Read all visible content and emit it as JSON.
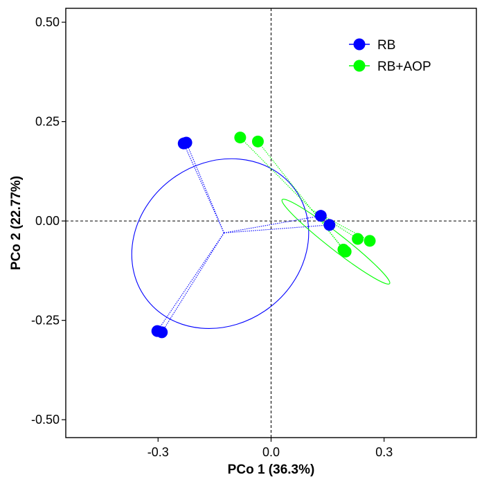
{
  "chart_data": {
    "type": "scatter",
    "xlabel": "PCo 1 (36.3%)",
    "ylabel": "PCo 2 (22.77%)",
    "xlim": [
      -0.545,
      0.545
    ],
    "ylim": [
      -0.545,
      0.535
    ],
    "x_ticks": [
      {
        "value": -0.3,
        "label": "-0.3"
      },
      {
        "value": 0.0,
        "label": "0.0"
      },
      {
        "value": 0.3,
        "label": "0.3"
      }
    ],
    "y_ticks": [
      {
        "value": 0.5,
        "label": "0.50"
      },
      {
        "value": 0.25,
        "label": "0.25"
      },
      {
        "value": 0.0,
        "label": "0.00"
      },
      {
        "value": -0.25,
        "label": "-0.25"
      },
      {
        "value": -0.5,
        "label": "-0.50"
      }
    ],
    "reference_lines": {
      "x": 0,
      "y": 0,
      "style": "dashed"
    },
    "legend_position": "top-right",
    "series": [
      {
        "name": "RB",
        "color": "#0000ff",
        "centroid": [
          -0.125,
          -0.03
        ],
        "points": [
          {
            "x": -0.232,
            "y": 0.195
          },
          {
            "x": -0.225,
            "y": 0.197
          },
          {
            "x": -0.302,
            "y": -0.277
          },
          {
            "x": -0.29,
            "y": -0.28
          },
          {
            "x": 0.132,
            "y": 0.013
          },
          {
            "x": 0.155,
            "y": -0.01
          }
        ],
        "ellipse": {
          "cx": -0.135,
          "cy": -0.057,
          "rx": 0.245,
          "ry": 0.203,
          "rotation_deg": -36
        }
      },
      {
        "name": "RB+AOP",
        "color": "#00ff00",
        "centroid": [
          0.108,
          0.028
        ],
        "points": [
          {
            "x": -0.082,
            "y": 0.21
          },
          {
            "x": -0.035,
            "y": 0.2
          },
          {
            "x": 0.192,
            "y": -0.072
          },
          {
            "x": 0.198,
            "y": -0.077
          },
          {
            "x": 0.23,
            "y": -0.045
          },
          {
            "x": 0.262,
            "y": -0.05
          }
        ],
        "ellipse": {
          "cx": 0.172,
          "cy": -0.052,
          "rx": 0.181,
          "ry": 0.02,
          "rotation_deg": 38
        }
      }
    ]
  }
}
